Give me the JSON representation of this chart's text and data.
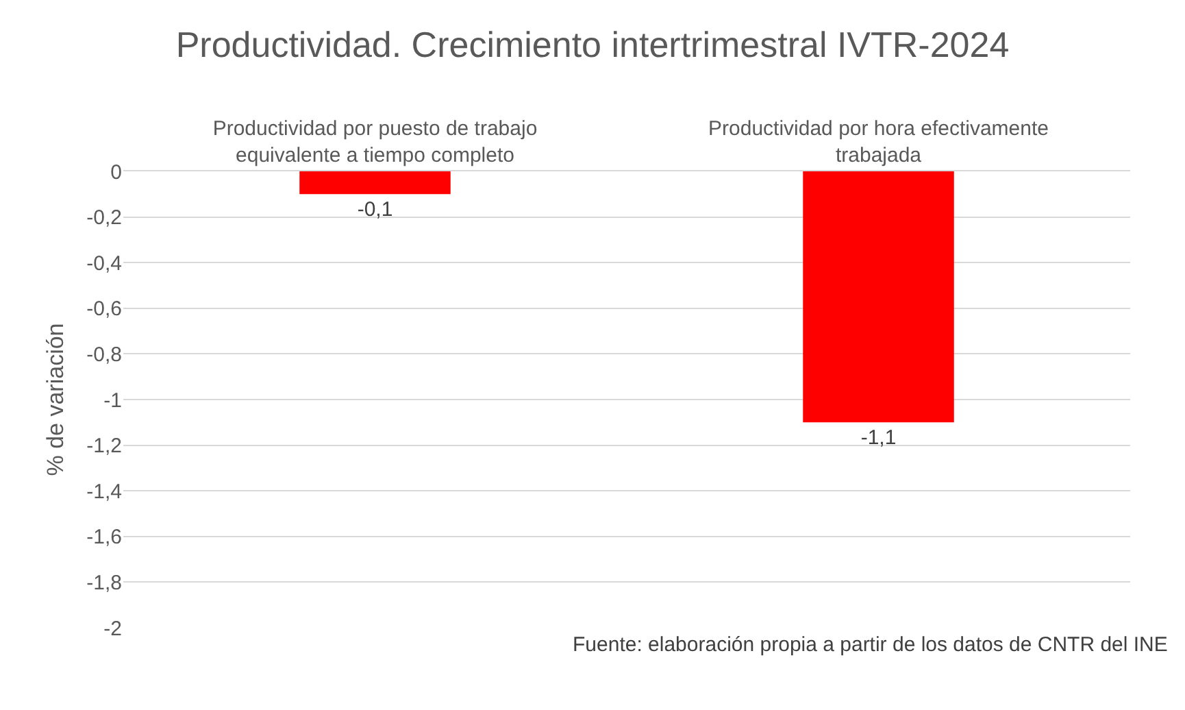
{
  "chart_data": {
    "type": "bar",
    "title": "Productividad. Crecimiento intertrimestral IVTR-2024",
    "ylabel": "% de variación",
    "categories": [
      "Productividad por puesto de trabajo equivalente a tiempo completo",
      "Productividad por hora efectivamente trabajada"
    ],
    "values": [
      -0.1,
      -1.1
    ],
    "value_labels": [
      "-0,1",
      "-1,1"
    ],
    "color": "#ff0000",
    "ylim": [
      -2,
      0
    ],
    "yticks": [
      0,
      {
        "value": -0.2,
        "label": "-0,2"
      },
      {
        "value": -0.4,
        "label": "-0,4"
      },
      {
        "value": -0.6,
        "label": "-0,6"
      },
      {
        "value": -0.8,
        "label": "-0,8"
      },
      -1,
      {
        "value": -1.2,
        "label": "-1,2"
      },
      {
        "value": -1.4,
        "label": "-1,4"
      },
      {
        "value": -1.6,
        "label": "-1,6"
      },
      {
        "value": -1.8,
        "label": "-1,8"
      },
      -2
    ],
    "grid": "y",
    "annotations": [
      "Fuente: elaboración propia a partir de los datos de CNTR del INE"
    ]
  }
}
